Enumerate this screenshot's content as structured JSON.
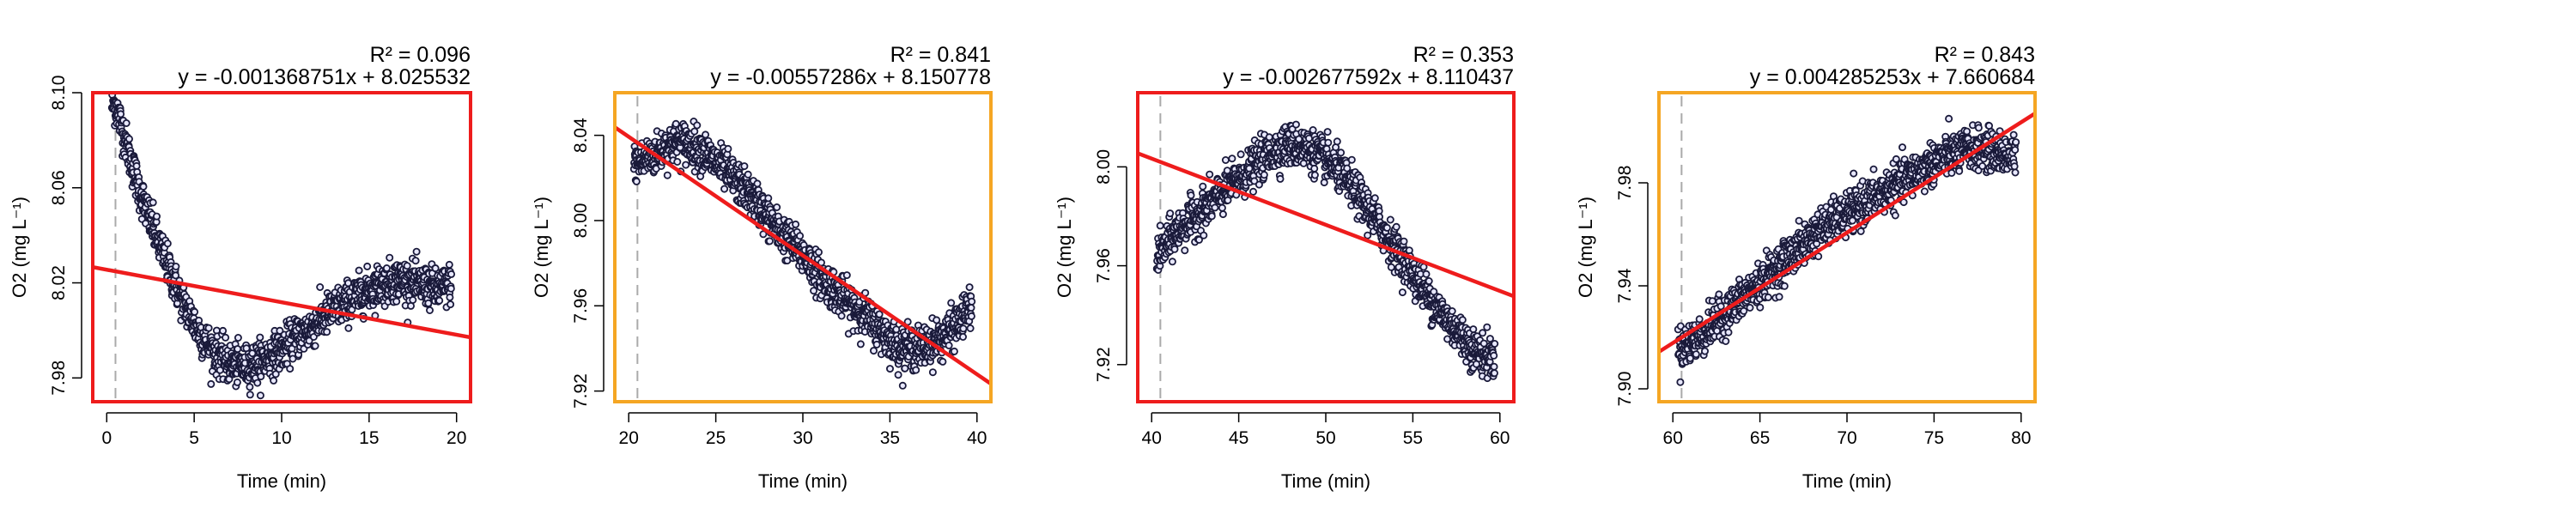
{
  "chart_data": [
    {
      "type": "scatter",
      "xlabel": "Time (min)",
      "ylabel": "O2 (mg L⁻¹)",
      "r2_label": "R² = 0.096",
      "equation": "y = -0.001368751x + 8.025532",
      "xlim": [
        0,
        20
      ],
      "ylim": [
        7.97,
        8.1
      ],
      "x_ticks": [
        0,
        5,
        10,
        15,
        20
      ],
      "x_tick_labels": [
        "0",
        "5",
        "10",
        "15",
        "20"
      ],
      "y_ticks": [
        7.98,
        8.02,
        8.06,
        8.1
      ],
      "y_tick_labels": [
        "7.98",
        "8.02",
        "8.06",
        "8.10"
      ],
      "marker_x": 0.5,
      "frame_color": "#ee1c1c",
      "point_color": "#1a1a3a",
      "fit_line": {
        "slope": -0.001368751,
        "intercept": 8.025532,
        "color": "#ee1c1c"
      },
      "series": [
        {
          "x": [
            0.5,
            1,
            1.5,
            2,
            2.5,
            3,
            3.5,
            4,
            4.5,
            5,
            5.5,
            6,
            6.5,
            7,
            7.5,
            8,
            8.5,
            9,
            9.5,
            10,
            10.5,
            11,
            11.5,
            12,
            12.5,
            13,
            13.5,
            14,
            14.5,
            15,
            15.5,
            16,
            16.5,
            17,
            17.5,
            18,
            18.5,
            19,
            19.5,
            20
          ],
          "y": [
            8.095,
            8.082,
            8.068,
            8.056,
            8.046,
            8.036,
            8.027,
            8.018,
            8.01,
            8.003,
            7.997,
            7.992,
            7.989,
            7.986,
            7.985,
            7.985,
            7.986,
            7.988,
            7.99,
            7.992,
            7.995,
            7.998,
            8.0,
            8.003,
            8.006,
            8.009,
            8.011,
            8.013,
            8.015,
            8.017,
            8.019,
            8.02,
            8.021,
            8.021,
            8.02,
            8.019,
            8.018,
            8.017,
            8.019,
            8.022
          ]
        }
      ]
    },
    {
      "type": "scatter",
      "xlabel": "Time (min)",
      "ylabel": "O2 (mg L⁻¹)",
      "r2_label": "R² = 0.841",
      "equation": "y = -0.00557286x + 8.150778",
      "xlim": [
        20,
        40
      ],
      "ylim": [
        7.915,
        8.06
      ],
      "x_ticks": [
        20,
        25,
        30,
        35,
        40
      ],
      "x_tick_labels": [
        "20",
        "25",
        "30",
        "35",
        "40"
      ],
      "y_ticks": [
        7.92,
        7.96,
        8.0,
        8.04
      ],
      "y_tick_labels": [
        "7.92",
        "7.96",
        "8.00",
        "8.04"
      ],
      "marker_x": 20.5,
      "frame_color": "#f5a623",
      "point_color": "#1a1a3a",
      "fit_line": {
        "slope": -0.00557286,
        "intercept": 8.150778,
        "color": "#ee1c1c"
      },
      "series": [
        {
          "x": [
            20.5,
            21,
            21.5,
            22,
            22.5,
            23,
            23.5,
            24,
            24.5,
            25,
            25.5,
            26,
            26.5,
            27,
            27.5,
            28,
            28.5,
            29,
            29.5,
            30,
            30.5,
            31,
            31.5,
            32,
            32.5,
            33,
            33.5,
            34,
            34.5,
            35,
            35.5,
            36,
            36.5,
            37,
            37.5,
            38,
            38.5,
            39,
            39.5
          ],
          "y": [
            8.027,
            8.029,
            8.031,
            8.034,
            8.036,
            8.037,
            8.036,
            8.034,
            8.031,
            8.027,
            8.024,
            8.02,
            8.016,
            8.012,
            8.007,
            8.001,
            7.996,
            7.992,
            7.988,
            7.984,
            7.979,
            7.974,
            7.97,
            7.966,
            7.962,
            7.959,
            7.956,
            7.952,
            7.948,
            7.944,
            7.941,
            7.94,
            7.94,
            7.941,
            7.943,
            7.945,
            7.948,
            7.953,
            7.958
          ]
        }
      ]
    },
    {
      "type": "scatter",
      "xlabel": "Time (min)",
      "ylabel": "O2 (mg L⁻¹)",
      "r2_label": "R² = 0.353",
      "equation": "y = -0.002677592x + 8.110437",
      "xlim": [
        40,
        60
      ],
      "ylim": [
        7.905,
        8.03
      ],
      "x_ticks": [
        40,
        45,
        50,
        55,
        60
      ],
      "x_tick_labels": [
        "40",
        "45",
        "50",
        "55",
        "60"
      ],
      "y_ticks": [
        7.92,
        7.96,
        8.0
      ],
      "y_tick_labels": [
        "7.92",
        "7.96",
        "8.00"
      ],
      "marker_x": 40.5,
      "frame_color": "#ee1c1c",
      "point_color": "#1a1a3a",
      "fit_line": {
        "slope": -0.002677592,
        "intercept": 8.110437,
        "color": "#ee1c1c"
      },
      "series": [
        {
          "x": [
            40.5,
            41,
            41.5,
            42,
            42.5,
            43,
            43.5,
            44,
            44.5,
            45,
            45.5,
            46,
            46.5,
            47,
            47.5,
            48,
            48.5,
            49,
            49.5,
            50,
            50.5,
            51,
            51.5,
            52,
            52.5,
            53,
            53.5,
            54,
            54.5,
            55,
            55.5,
            56,
            56.5,
            57,
            57.5,
            58,
            58.5,
            59,
            59.5
          ],
          "y": [
            7.965,
            7.97,
            7.974,
            7.977,
            7.98,
            7.983,
            7.986,
            7.989,
            7.992,
            7.995,
            7.998,
            8.001,
            8.004,
            8.006,
            8.008,
            8.009,
            8.008,
            8.007,
            8.005,
            8.003,
            8.0,
            7.996,
            7.992,
            7.987,
            7.982,
            7.977,
            7.972,
            7.967,
            7.962,
            7.957,
            7.952,
            7.947,
            7.942,
            7.938,
            7.934,
            7.93,
            7.926,
            7.924,
            7.923
          ]
        }
      ]
    },
    {
      "type": "scatter",
      "xlabel": "Time (min)",
      "ylabel": "O2 (mg L⁻¹)",
      "r2_label": "R² = 0.843",
      "equation": "y = 0.004285253x + 7.660684",
      "xlim": [
        60,
        80
      ],
      "ylim": [
        7.895,
        8.015
      ],
      "x_ticks": [
        60,
        65,
        70,
        75,
        80
      ],
      "x_tick_labels": [
        "60",
        "65",
        "70",
        "75",
        "80"
      ],
      "y_ticks": [
        7.9,
        7.94,
        7.98
      ],
      "y_tick_labels": [
        "7.90",
        "7.94",
        "7.98"
      ],
      "marker_x": 60.5,
      "frame_color": "#f5a623",
      "point_color": "#1a1a3a",
      "fit_line": {
        "slope": 0.004285253,
        "intercept": 7.660684,
        "color": "#ee1c1c"
      },
      "series": [
        {
          "x": [
            60.5,
            61,
            61.5,
            62,
            62.5,
            63,
            63.5,
            64,
            64.5,
            65,
            65.5,
            66,
            66.5,
            67,
            67.5,
            68,
            68.5,
            69,
            69.5,
            70,
            70.5,
            71,
            71.5,
            72,
            72.5,
            73,
            73.5,
            74,
            74.5,
            75,
            75.5,
            76,
            76.5,
            77,
            77.5,
            78,
            78.5,
            79,
            79.5
          ],
          "y": [
            7.916,
            7.918,
            7.92,
            7.923,
            7.926,
            7.929,
            7.932,
            7.935,
            7.938,
            7.941,
            7.944,
            7.947,
            7.95,
            7.953,
            7.956,
            7.959,
            7.962,
            7.964,
            7.966,
            7.968,
            7.97,
            7.972,
            7.974,
            7.976,
            7.978,
            7.98,
            7.982,
            7.984,
            7.986,
            7.988,
            7.99,
            7.991,
            7.992,
            7.993,
            7.993,
            7.993,
            7.992,
            7.991,
            7.99
          ]
        }
      ]
    }
  ]
}
